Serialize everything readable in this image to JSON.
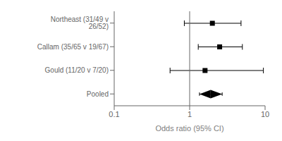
{
  "chart_data": {
    "type": "forest",
    "categories": [
      "Northeast (31/49 v 26/52)",
      "Callam (35/65 v 19/67)",
      "Gould (11/20 v 7/20)",
      "Pooled"
    ],
    "values": [
      2.0,
      2.5,
      1.6,
      1.9
    ],
    "ci_low": [
      0.85,
      1.3,
      0.55,
      1.35
    ],
    "ci_high": [
      4.8,
      5.0,
      9.5,
      2.7
    ],
    "markers": [
      "square",
      "square",
      "square",
      "diamond"
    ],
    "reference_line": 1,
    "color": "#000000",
    "xlabel": "Odds ratio (95% CI)",
    "log": "x",
    "xlim": [
      0.1,
      10
    ],
    "xticks": [
      0.1,
      1,
      10
    ],
    "grid": false
  }
}
